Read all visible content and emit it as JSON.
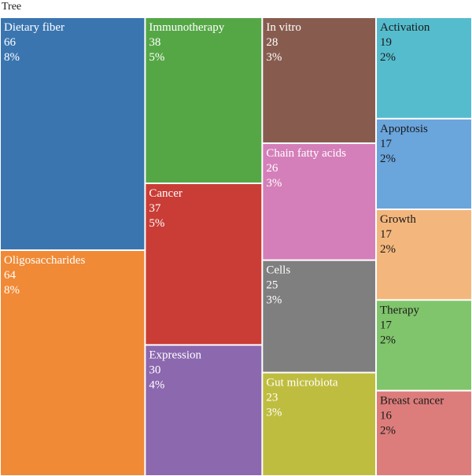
{
  "chart_data": {
    "type": "treemap",
    "title": "Tree",
    "items": [
      {
        "name": "Dietary fiber",
        "value": 66,
        "percent": "8%",
        "color": "#3a75b0"
      },
      {
        "name": "Oligosaccharides",
        "value": 64,
        "percent": "8%",
        "color": "#f08a36"
      },
      {
        "name": "Immunotherapy",
        "value": 38,
        "percent": "5%",
        "color": "#55a746"
      },
      {
        "name": "Cancer",
        "value": 37,
        "percent": "5%",
        "color": "#c93d36"
      },
      {
        "name": "Expression",
        "value": 30,
        "percent": "4%",
        "color": "#8c68af"
      },
      {
        "name": "In vitro",
        "value": 28,
        "percent": "3%",
        "color": "#875c4f"
      },
      {
        "name": "Chain fatty acids",
        "value": 26,
        "percent": "3%",
        "color": "#d47fb9"
      },
      {
        "name": "Cells",
        "value": 25,
        "percent": "3%",
        "color": "#7f7f7f"
      },
      {
        "name": "Gut microbiota",
        "value": 23,
        "percent": "3%",
        "color": "#bfbd3f"
      },
      {
        "name": "Activation",
        "value": 19,
        "percent": "2%",
        "color": "#55bccd"
      },
      {
        "name": "Apoptosis",
        "value": 17,
        "percent": "2%",
        "color": "#6aa5dc"
      },
      {
        "name": "Growth",
        "value": 17,
        "percent": "2%",
        "color": "#f3b77d"
      },
      {
        "name": "Therapy",
        "value": 17,
        "percent": "2%",
        "color": "#80c56c"
      },
      {
        "name": "Breast cancer",
        "value": 16,
        "percent": "2%",
        "color": "#dc7d7b"
      }
    ]
  }
}
